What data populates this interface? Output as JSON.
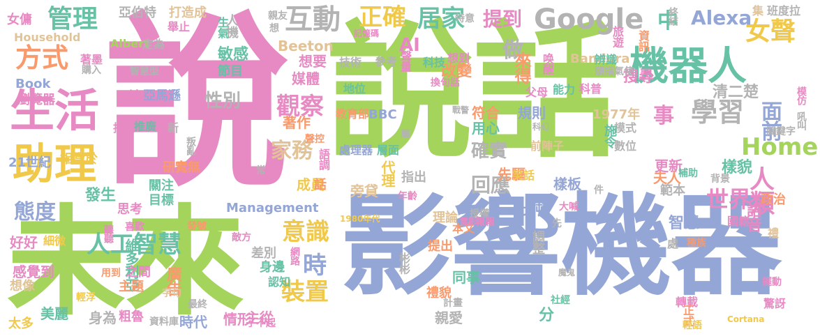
{
  "palette": {
    "green": "#a5d45c",
    "blue": "#94a6d6",
    "pink": "#e78ac3",
    "orange": "#f99a6d",
    "teal": "#66c1a5",
    "yellow": "#f0c94b",
    "tan": "#e2c397",
    "gray": "#b3b3b3"
  },
  "words": [
    {
      "text": "說話",
      "color": "green"
    },
    {
      "text": "說",
      "color": "pink"
    },
    {
      "text": "影響機器",
      "color": "blue"
    },
    {
      "text": "未來",
      "color": "green"
    },
    {
      "text": "生活",
      "color": "pink"
    },
    {
      "text": "助理",
      "color": "yellow"
    },
    {
      "text": "機器人",
      "color": "teal"
    },
    {
      "text": "Google",
      "color": "gray"
    },
    {
      "text": "互動",
      "color": "gray"
    },
    {
      "text": "管理",
      "color": "teal"
    },
    {
      "text": "方式",
      "color": "orange"
    },
    {
      "text": "正確",
      "color": "yellow"
    },
    {
      "text": "居家",
      "color": "teal"
    },
    {
      "text": "提到",
      "color": "pink"
    },
    {
      "text": "中",
      "color": "teal"
    },
    {
      "text": "女聲",
      "color": "yellow"
    },
    {
      "text": "Alexa",
      "color": "blue"
    },
    {
      "text": "學習",
      "color": "gray"
    },
    {
      "text": "人類",
      "color": "pink"
    },
    {
      "text": "面前",
      "color": "blue"
    },
    {
      "text": "Home",
      "color": "green"
    },
    {
      "text": "觀察",
      "color": "pink"
    },
    {
      "text": "家務",
      "color": "tan"
    },
    {
      "text": "人工智慧",
      "color": "teal"
    },
    {
      "text": "意識",
      "color": "yellow"
    },
    {
      "text": "裝置",
      "color": "yellow"
    },
    {
      "text": "態度",
      "color": "blue"
    },
    {
      "text": "世界",
      "color": "pink"
    },
    {
      "text": "時",
      "color": "blue"
    },
    {
      "text": "事",
      "color": "pink"
    },
    {
      "text": "做",
      "color": "gray"
    },
    {
      "text": "回應",
      "color": "gray"
    },
    {
      "text": "確實",
      "color": "gray"
    },
    {
      "text": "性別",
      "color": "gray"
    },
    {
      "text": "AI",
      "color": "pink"
    },
    {
      "text": "Beeton",
      "color": "tan"
    },
    {
      "text": "來得",
      "color": "orange"
    },
    {
      "text": "搜尋",
      "color": "pink"
    },
    {
      "text": "Bandura",
      "color": "tan"
    },
    {
      "text": "亞伯特",
      "color": "gray"
    },
    {
      "text": "打造成",
      "color": "tan"
    },
    {
      "text": "人機",
      "color": "gray"
    },
    {
      "text": "女傭",
      "color": "pink"
    },
    {
      "text": "Household",
      "color": "tan"
    },
    {
      "text": "Albert",
      "color": "green"
    },
    {
      "text": "Book",
      "color": "blue"
    },
    {
      "text": "瀏覽器",
      "color": "pink"
    },
    {
      "text": "21世紀",
      "color": "blue"
    },
    {
      "text": "相當於",
      "color": "yellow"
    },
    {
      "text": "Management",
      "color": "blue"
    },
    {
      "text": "發生",
      "color": "teal"
    },
    {
      "text": "思考",
      "color": "pink"
    },
    {
      "text": "維多利亞",
      "color": "teal"
    },
    {
      "text": "好好",
      "color": "pink"
    },
    {
      "text": "細微",
      "color": "yellow"
    },
    {
      "text": "感覺到",
      "color": "pink"
    },
    {
      "text": "想像",
      "color": "tan"
    },
    {
      "text": "美麗",
      "color": "teal"
    },
    {
      "text": "太多",
      "color": "yellow"
    },
    {
      "text": "主從",
      "color": "pink"
    },
    {
      "text": "時代",
      "color": "blue"
    },
    {
      "text": "情形",
      "color": "pink"
    },
    {
      "text": "廣告",
      "color": "orange"
    },
    {
      "text": "主題",
      "color": "orange"
    },
    {
      "text": "之間",
      "color": "pink"
    },
    {
      "text": "身為",
      "color": "gray"
    },
    {
      "text": "粗魯",
      "color": "pink"
    },
    {
      "text": "智慧",
      "color": "blue"
    },
    {
      "text": "語音",
      "color": "pink"
    },
    {
      "text": "政治",
      "color": "orange"
    },
    {
      "text": "清二楚",
      "color": "gray"
    },
    {
      "text": "樣貌",
      "color": "teal"
    },
    {
      "text": "夫人",
      "color": "orange"
    },
    {
      "text": "先驅",
      "color": "orange"
    },
    {
      "text": "更新",
      "color": "pink"
    },
    {
      "text": "範本",
      "color": "gray"
    },
    {
      "text": "比頓",
      "color": "blue"
    },
    {
      "text": "樣板",
      "color": "blue"
    },
    {
      "text": "符合",
      "color": "orange"
    },
    {
      "text": "用心",
      "color": "teal"
    },
    {
      "text": "規則",
      "color": "blue"
    },
    {
      "text": "1977年",
      "color": "tan"
    },
    {
      "text": "模式",
      "color": "gray"
    },
    {
      "text": "施令",
      "color": "teal"
    },
    {
      "text": "改變",
      "color": "orange"
    },
    {
      "text": "想要",
      "color": "pink"
    },
    {
      "text": "敏感",
      "color": "teal"
    },
    {
      "text": "媒體",
      "color": "pink"
    },
    {
      "text": "著作",
      "color": "orange"
    },
    {
      "text": "成員",
      "color": "yellow"
    },
    {
      "text": "代理",
      "color": "yellow"
    },
    {
      "text": "旁貸",
      "color": "tan"
    },
    {
      "text": "指出",
      "color": "gray"
    },
    {
      "text": "理論",
      "color": "tan"
    },
    {
      "text": "本文",
      "color": "orange"
    },
    {
      "text": "調整",
      "color": "gray"
    },
    {
      "text": "提出",
      "color": "orange"
    },
    {
      "text": "同事",
      "color": "teal"
    },
    {
      "text": "禮貌",
      "color": "orange"
    },
    {
      "text": "親愛",
      "color": "gray"
    },
    {
      "text": "分",
      "color": "teal"
    },
    {
      "text": "身邊",
      "color": "teal"
    },
    {
      "text": "差別",
      "color": "gray"
    },
    {
      "text": "話",
      "color": "orange"
    },
    {
      "text": "研究",
      "color": "orange"
    },
    {
      "text": "關注",
      "color": "teal"
    },
    {
      "text": "目標",
      "color": "teal"
    },
    {
      "text": "青無",
      "color": "orange"
    },
    {
      "text": "節目",
      "color": "teal"
    },
    {
      "text": "社會",
      "color": "pink"
    },
    {
      "text": "亞馬遜",
      "color": "blue"
    },
    {
      "text": "指南",
      "color": "pink"
    },
    {
      "text": "推廣",
      "color": "teal"
    },
    {
      "text": "BBC",
      "color": "blue"
    },
    {
      "text": "教育部",
      "color": "orange"
    },
    {
      "text": "處理器",
      "color": "blue"
    },
    {
      "text": "層面",
      "color": "teal"
    },
    {
      "text": "語調",
      "color": "pink"
    },
    {
      "text": "參考",
      "color": "gray"
    },
    {
      "text": "技術",
      "color": "gray"
    },
    {
      "text": "地位",
      "color": "teal"
    },
    {
      "text": "科技",
      "color": "teal"
    },
    {
      "text": "聲量",
      "color": "pink"
    },
    {
      "text": "想到",
      "color": "pink"
    },
    {
      "text": "換句話",
      "color": "pink"
    },
    {
      "text": "唤醒",
      "color": "pink"
    },
    {
      "text": "父母",
      "color": "pink"
    },
    {
      "text": "能力",
      "color": "teal"
    },
    {
      "text": "科普",
      "color": "pink"
    },
    {
      "text": "辨識",
      "color": "teal"
    },
    {
      "text": "頤指氣使",
      "color": "gray"
    },
    {
      "text": "旅遊",
      "color": "pink"
    },
    {
      "text": "資訊",
      "color": "orange"
    },
    {
      "text": "班度拉",
      "color": "gray"
    },
    {
      "text": "集",
      "color": "tan"
    },
    {
      "text": "終結",
      "color": "gray"
    },
    {
      "text": "模仿",
      "color": "pink"
    },
    {
      "text": "吼叫",
      "color": "gray"
    },
    {
      "text": "關鍵字",
      "color": "gray"
    },
    {
      "text": "數位",
      "color": "gray"
    },
    {
      "text": "前陣子",
      "color": "tan"
    },
    {
      "text": "笑話",
      "color": "yellow"
    },
    {
      "text": "補助",
      "color": "teal"
    },
    {
      "text": "背景",
      "color": "gray"
    },
    {
      "text": "件",
      "color": "gray"
    },
    {
      "text": "大喊",
      "color": "pink"
    },
    {
      "text": "國籍",
      "color": "pink"
    },
    {
      "text": "種族",
      "color": "orange"
    },
    {
      "text": "處",
      "color": "gray"
    },
    {
      "text": "禮",
      "color": "tan"
    },
    {
      "text": "轉載",
      "color": "pink"
    },
    {
      "text": "正式",
      "color": "orange"
    },
    {
      "text": "輕語",
      "color": "yellow"
    },
    {
      "text": "社經",
      "color": "teal"
    },
    {
      "text": "驚訝",
      "color": "pink"
    },
    {
      "text": "擺動",
      "color": "pink"
    },
    {
      "text": "魔鬼",
      "color": "gray"
    },
    {
      "text": "計畫",
      "color": "gray"
    },
    {
      "text": "彬彬",
      "color": "gray"
    },
    {
      "text": "網路",
      "color": "pink"
    },
    {
      "text": "認知",
      "color": "teal"
    },
    {
      "text": "最終",
      "color": "gray"
    },
    {
      "text": "字句",
      "color": "tan"
    },
    {
      "text": "輕浮",
      "color": "yellow"
    },
    {
      "text": "資料庫",
      "color": "gray"
    },
    {
      "text": "了不起",
      "color": "pink"
    },
    {
      "text": "敵方",
      "color": "pink"
    },
    {
      "text": "聽聽",
      "color": "pink"
    },
    {
      "text": "用到",
      "color": "orange"
    },
    {
      "text": "喜歡",
      "color": "pink"
    },
    {
      "text": "發號",
      "color": "orange"
    },
    {
      "text": "常",
      "color": "gray"
    },
    {
      "text": "新",
      "color": "gray"
    },
    {
      "text": "叛亂",
      "color": "gray"
    },
    {
      "text": "聲控",
      "color": "orange"
    },
    {
      "text": "屬",
      "color": "gray"
    },
    {
      "text": "戰警",
      "color": "gray"
    },
    {
      "text": "科幻",
      "color": "gray"
    },
    {
      "text": "年齡",
      "color": "pink"
    },
    {
      "text": "電影",
      "color": "pink"
    },
    {
      "text": "授權",
      "color": "gray"
    },
    {
      "text": "報報",
      "color": "pink"
    },
    {
      "text": "先",
      "color": "gray"
    },
    {
      "text": "1980年代",
      "color": "yellow"
    },
    {
      "text": "定為",
      "color": "gray"
    },
    {
      "text": "智慧型",
      "color": "gray"
    },
    {
      "text": "購入",
      "color": "gray"
    },
    {
      "text": "著墨",
      "color": "pink"
    },
    {
      "text": "舉止",
      "color": "pink"
    },
    {
      "text": "生氣",
      "color": "teal"
    },
    {
      "text": "親友",
      "color": "gray"
    },
    {
      "text": "想",
      "color": "gray"
    },
    {
      "text": "記憶碼",
      "color": "pink"
    },
    {
      "text": "特意",
      "color": "gray"
    },
    {
      "text": "Cortana",
      "color": "yellow"
    }
  ]
}
